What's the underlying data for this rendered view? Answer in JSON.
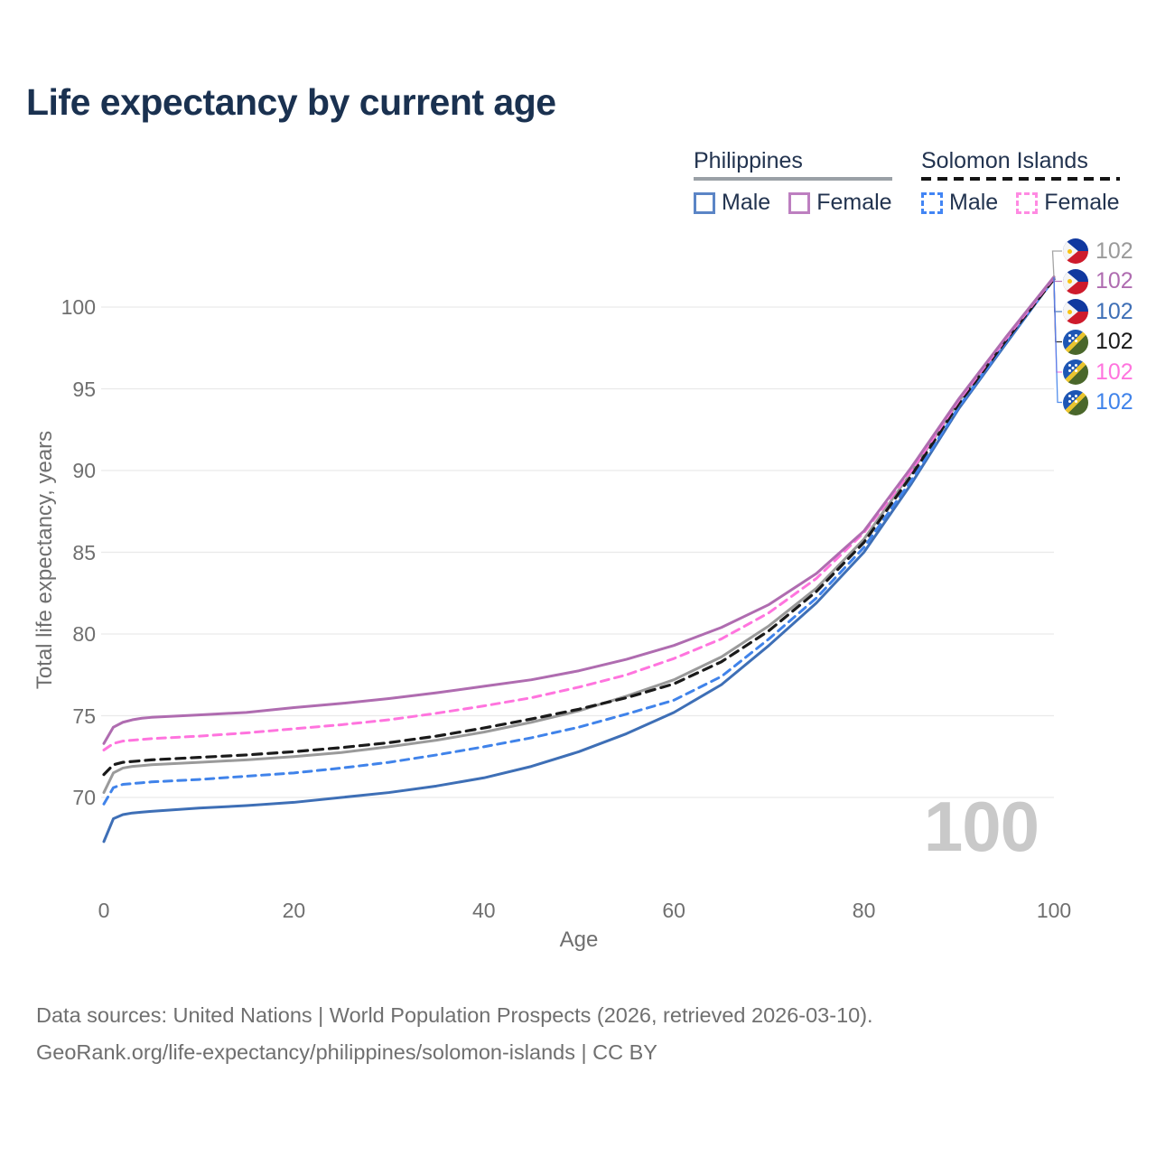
{
  "header": {
    "title": "Life expectancy by current age",
    "title_color": "#1a3150"
  },
  "legend": {
    "groups": [
      {
        "name": "Philippines",
        "underline_style": "solid",
        "underline_color": "#9aa0a6",
        "items": [
          {
            "label": "Male",
            "color": "#5b85c6",
            "dashed": false
          },
          {
            "label": "Female",
            "color": "#bd7fc0",
            "dashed": false
          }
        ]
      },
      {
        "name": "Solomon Islands",
        "underline_style": "dashed",
        "underline_color": "#141414",
        "items": [
          {
            "label": "Male",
            "color": "#4285f4",
            "dashed": true
          },
          {
            "label": "Female",
            "color": "#ff8ae2",
            "dashed": true
          }
        ]
      }
    ]
  },
  "chart_data": {
    "type": "line",
    "title": "Life expectancy by current age",
    "xlabel": "Age",
    "ylabel": "Total life expectancy, years",
    "xticks": [
      0,
      20,
      40,
      60,
      80,
      100
    ],
    "yticks": [
      70,
      75,
      80,
      85,
      90,
      95,
      100
    ],
    "xlim": [
      0,
      100
    ],
    "ylim": [
      66.5,
      103.5
    ],
    "grid": "horizontal-only",
    "gridline_color": "#e9e9e9",
    "age_watermark": "100",
    "x": [
      0,
      1,
      2,
      3,
      4,
      5,
      10,
      15,
      20,
      25,
      30,
      35,
      40,
      45,
      50,
      55,
      60,
      65,
      70,
      75,
      80,
      85,
      90,
      95,
      100
    ],
    "series": [
      {
        "id": "ph_total",
        "name": "Philippines — Both sexes",
        "flag": "ph",
        "color": "#9a9a9a",
        "dash": "solid",
        "width": 3,
        "end_label": "102",
        "values": [
          70.3,
          71.5,
          71.8,
          71.9,
          71.95,
          72.0,
          72.15,
          72.3,
          72.5,
          72.75,
          73.1,
          73.5,
          74.0,
          74.6,
          75.3,
          76.2,
          77.2,
          78.6,
          80.5,
          82.8,
          85.8,
          89.9,
          94.25,
          98.1,
          101.8
        ]
      },
      {
        "id": "ph_female",
        "name": "Philippines — Female",
        "flag": "ph",
        "color": "#af6cb0",
        "dash": "solid",
        "width": 3,
        "end_label": "102",
        "values": [
          73.3,
          74.3,
          74.6,
          74.75,
          74.85,
          74.9,
          75.05,
          75.2,
          75.5,
          75.75,
          76.05,
          76.4,
          76.8,
          77.2,
          77.75,
          78.45,
          79.3,
          80.4,
          81.8,
          83.7,
          86.3,
          90.2,
          94.4,
          98.2,
          101.85
        ]
      },
      {
        "id": "ph_male",
        "name": "Philippines — Male",
        "flag": "ph",
        "color": "#3e6fb6",
        "dash": "solid",
        "width": 3,
        "end_label": "102",
        "values": [
          67.3,
          68.7,
          68.95,
          69.05,
          69.1,
          69.15,
          69.35,
          69.5,
          69.7,
          70.0,
          70.3,
          70.7,
          71.2,
          71.9,
          72.8,
          73.9,
          75.2,
          76.9,
          79.3,
          81.9,
          85.0,
          89.2,
          93.8,
          97.8,
          101.75
        ]
      },
      {
        "id": "si_total",
        "name": "Solomon Islands — Both sexes",
        "flag": "si",
        "color": "#1a1a1a",
        "dash": "10 7",
        "width": 3.2,
        "end_label": "102",
        "values": [
          71.4,
          72.0,
          72.15,
          72.2,
          72.25,
          72.3,
          72.45,
          72.6,
          72.8,
          73.05,
          73.35,
          73.75,
          74.25,
          74.8,
          75.4,
          76.1,
          76.95,
          78.3,
          80.2,
          82.6,
          85.6,
          89.7,
          94.1,
          98.0,
          101.7
        ]
      },
      {
        "id": "si_female",
        "name": "Solomon Islands — Female",
        "flag": "si",
        "color": "#ff74de",
        "dash": "9 6.5",
        "width": 3,
        "end_label": "102",
        "values": [
          72.9,
          73.3,
          73.45,
          73.5,
          73.55,
          73.6,
          73.75,
          73.95,
          74.2,
          74.45,
          74.75,
          75.15,
          75.6,
          76.1,
          76.75,
          77.5,
          78.5,
          79.7,
          81.3,
          83.4,
          86.2,
          90.0,
          94.3,
          98.1,
          101.8
        ]
      },
      {
        "id": "si_male",
        "name": "Solomon Islands — Male",
        "flag": "si",
        "color": "#4083ea",
        "dash": "9 6.5",
        "width": 3,
        "end_label": "102",
        "values": [
          69.6,
          70.6,
          70.8,
          70.85,
          70.9,
          70.95,
          71.1,
          71.3,
          71.5,
          71.8,
          72.15,
          72.6,
          73.1,
          73.65,
          74.3,
          75.1,
          75.95,
          77.4,
          79.7,
          82.2,
          85.3,
          89.4,
          93.9,
          97.9,
          101.7
        ]
      }
    ],
    "z_order": [
      "ph_male",
      "si_male",
      "ph_total",
      "si_total",
      "si_female",
      "ph_female"
    ],
    "legend_position": "top-right"
  },
  "footer": {
    "line1": "Data sources: United Nations | World Population Prospects (2026, retrieved 2026-03-10).",
    "line2": "GeoRank.org/life-expectancy/philippines/solomon-islands | CC BY"
  }
}
